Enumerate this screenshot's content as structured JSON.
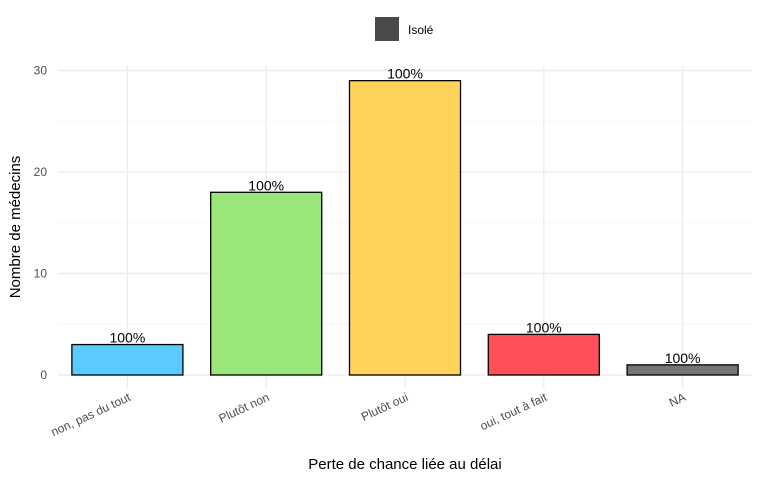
{
  "chart_data": {
    "type": "bar",
    "categories": [
      "non, pas du tout",
      "Plutôt non",
      "Plutôt oui",
      "oui, tout à fait",
      "NA"
    ],
    "values": [
      3,
      18,
      29,
      4,
      1
    ],
    "bar_colors": [
      "#5bcbff",
      "#9ae678",
      "#fdd35c",
      "#ff505a",
      "#757575"
    ],
    "data_labels": [
      "100%",
      "100%",
      "100%",
      "100%",
      "100%"
    ],
    "series": [
      {
        "name": "Isolé",
        "values": [
          3,
          18,
          29,
          4,
          1
        ],
        "legend_color": "#4a4a4a"
      }
    ],
    "xlabel": "Perte de chance liée au délai",
    "ylabel": "Nombre de médecins",
    "yticks": [
      0,
      10,
      20,
      30
    ],
    "ylim": [
      0,
      30
    ],
    "grid": true,
    "legend_position": "top"
  }
}
